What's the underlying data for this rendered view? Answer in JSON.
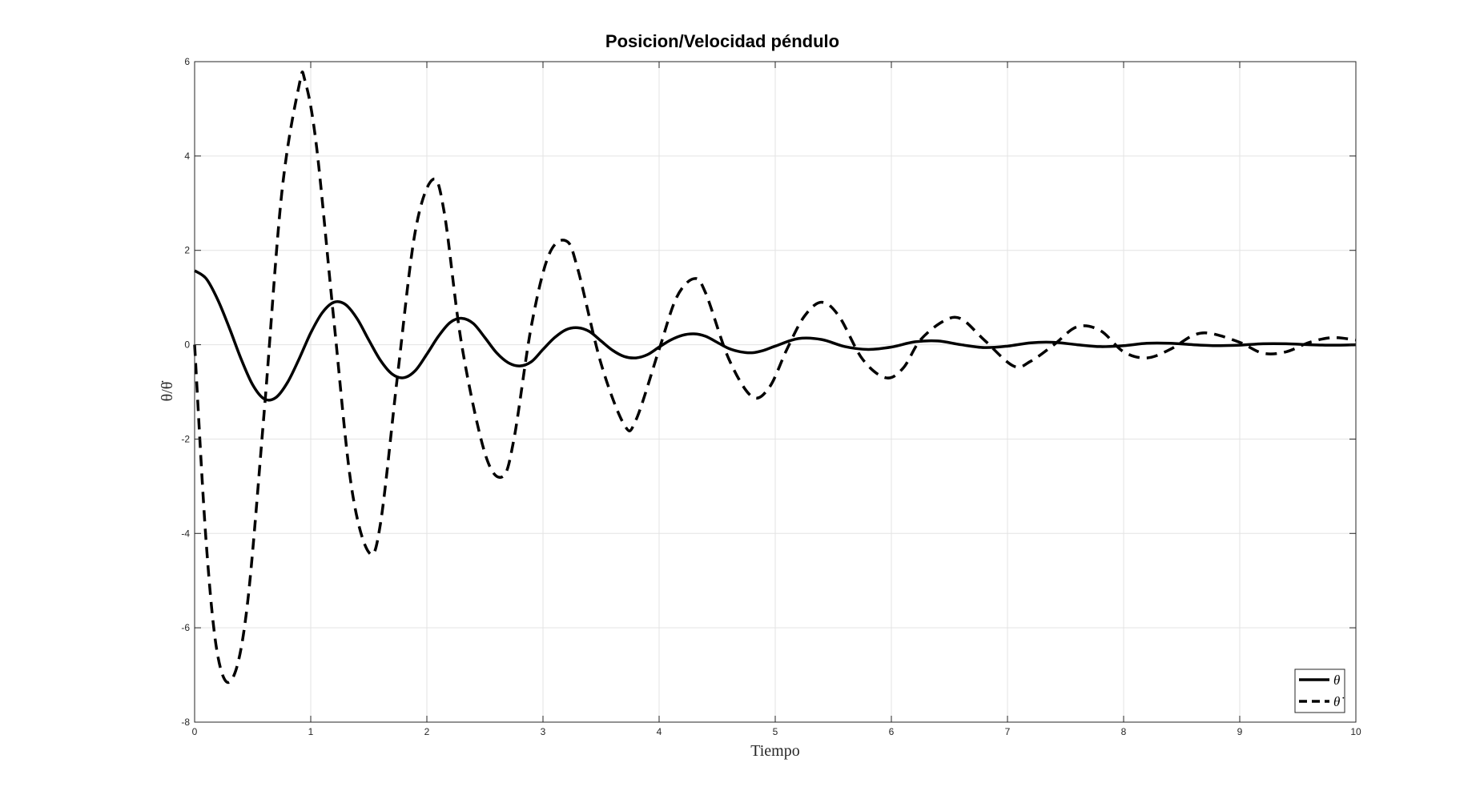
{
  "chart_data": {
    "type": "line",
    "title": "Posicion/Velocidad péndulo",
    "xlabel": "Tiempo",
    "ylabel": "θ/θ̇",
    "xlim": [
      0,
      10
    ],
    "ylim": [
      -8,
      6
    ],
    "xticks": [
      0,
      1,
      2,
      3,
      4,
      5,
      6,
      7,
      8,
      9,
      10
    ],
    "yticks": [
      -8,
      -6,
      -4,
      -2,
      0,
      2,
      4,
      6
    ],
    "grid": true,
    "legend_position": "bottom-right",
    "colors": {
      "line": "#000000",
      "grid": "#e3e3e3",
      "axis": "#262626"
    },
    "series": [
      {
        "name": "θ",
        "style": "solid",
        "x": [
          0,
          0.1,
          0.2,
          0.3,
          0.4,
          0.5,
          0.6,
          0.7,
          0.8,
          0.9,
          1.0,
          1.1,
          1.2,
          1.3,
          1.4,
          1.5,
          1.6,
          1.7,
          1.8,
          1.9,
          2.0,
          2.1,
          2.2,
          2.3,
          2.4,
          2.5,
          2.6,
          2.7,
          2.8,
          2.9,
          3.0,
          3.1,
          3.2,
          3.3,
          3.4,
          3.5,
          3.6,
          3.7,
          3.8,
          3.9,
          4.0,
          4.1,
          4.2,
          4.3,
          4.4,
          4.5,
          4.6,
          4.7,
          4.8,
          4.9,
          5.0,
          5.2,
          5.4,
          5.6,
          5.8,
          6.0,
          6.2,
          6.4,
          6.6,
          6.8,
          7.0,
          7.2,
          7.4,
          7.6,
          7.8,
          8.0,
          8.2,
          8.4,
          8.6,
          8.8,
          9.0,
          9.2,
          9.4,
          9.6,
          9.8,
          10.0
        ],
        "y": [
          1.57,
          1.4,
          0.95,
          0.35,
          -0.3,
          -0.85,
          -1.15,
          -1.12,
          -0.8,
          -0.3,
          0.25,
          0.68,
          0.9,
          0.85,
          0.55,
          0.1,
          -0.33,
          -0.62,
          -0.7,
          -0.55,
          -0.2,
          0.18,
          0.47,
          0.56,
          0.45,
          0.15,
          -0.17,
          -0.38,
          -0.45,
          -0.36,
          -0.1,
          0.15,
          0.32,
          0.36,
          0.28,
          0.08,
          -0.12,
          -0.25,
          -0.28,
          -0.21,
          -0.05,
          0.1,
          0.2,
          0.23,
          0.18,
          0.05,
          -0.08,
          -0.15,
          -0.17,
          -0.12,
          -0.03,
          0.13,
          0.11,
          -0.04,
          -0.1,
          -0.05,
          0.06,
          0.08,
          0.0,
          -0.06,
          -0.03,
          0.04,
          0.05,
          0.0,
          -0.04,
          -0.02,
          0.03,
          0.03,
          0.0,
          -0.02,
          -0.01,
          0.02,
          0.02,
          0.0,
          -0.01,
          0.0
        ]
      },
      {
        "name": "θ̇",
        "style": "dashed",
        "x": [
          0,
          0.1,
          0.2,
          0.32,
          0.45,
          0.6,
          0.75,
          0.9,
          0.95,
          1.05,
          1.2,
          1.35,
          1.5,
          1.6,
          1.75,
          1.9,
          2.05,
          2.15,
          2.3,
          2.5,
          2.65,
          2.75,
          2.9,
          3.05,
          3.2,
          3.3,
          3.5,
          3.7,
          3.8,
          4.0,
          4.15,
          4.3,
          4.4,
          4.6,
          4.8,
          4.95,
          5.1,
          5.25,
          5.4,
          5.55,
          5.75,
          5.95,
          6.1,
          6.25,
          6.45,
          6.6,
          6.8,
          7.05,
          7.2,
          7.4,
          7.6,
          7.8,
          8.0,
          8.2,
          8.4,
          8.6,
          8.75,
          9.0,
          9.2,
          9.4,
          9.6,
          9.8,
          10.0
        ],
        "y": [
          0,
          -4.2,
          -6.6,
          -7.1,
          -5.6,
          -1.4,
          3.2,
          5.5,
          5.6,
          4.2,
          0.5,
          -3.0,
          -4.4,
          -3.8,
          -0.6,
          2.4,
          3.5,
          2.8,
          0.0,
          -2.3,
          -2.8,
          -2.0,
          0.4,
          1.9,
          2.2,
          1.6,
          -0.4,
          -1.7,
          -1.6,
          -0.1,
          1.0,
          1.4,
          1.1,
          -0.3,
          -1.1,
          -0.9,
          -0.1,
          0.6,
          0.9,
          0.6,
          -0.3,
          -0.7,
          -0.5,
          0.1,
          0.5,
          0.55,
          0.1,
          -0.45,
          -0.35,
          0.0,
          0.38,
          0.3,
          -0.15,
          -0.28,
          -0.1,
          0.2,
          0.24,
          0.05,
          -0.18,
          -0.15,
          0.05,
          0.15,
          0.1
        ]
      }
    ]
  }
}
